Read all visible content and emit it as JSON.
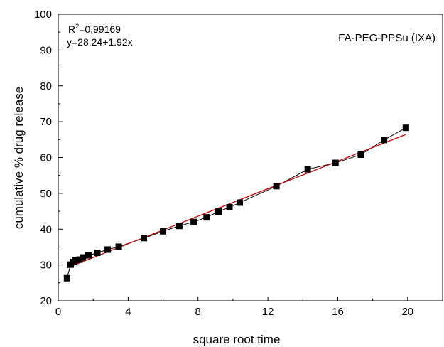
{
  "chart_data": {
    "type": "scatter",
    "title": "",
    "xlabel": "square root time",
    "ylabel": "cumulative % drug release",
    "xlim": [
      0,
      22
    ],
    "ylim": [
      20,
      100
    ],
    "xticks": [
      0,
      4,
      8,
      12,
      16,
      20
    ],
    "yticks": [
      20,
      30,
      40,
      50,
      60,
      70,
      80,
      90,
      100
    ],
    "xtick_labels": [
      "0",
      "4",
      "8",
      "12",
      "16",
      "20"
    ],
    "ytick_labels": [
      "20",
      "30",
      "40",
      "50",
      "60",
      "70",
      "80",
      "90",
      "100"
    ],
    "grid": false,
    "series": [
      {
        "marker": "square",
        "color": "#000000",
        "connected": true,
        "x": [
          0.5,
          0.71,
          0.87,
          1.0,
          1.22,
          1.41,
          1.73,
          2.24,
          2.83,
          3.46,
          4.9,
          6.0,
          6.93,
          7.75,
          8.49,
          9.17,
          9.8,
          10.39,
          12.49,
          14.28,
          15.87,
          17.32,
          18.65,
          19.9
        ],
        "y": [
          26.3,
          30.1,
          30.8,
          31.4,
          31.5,
          32.1,
          32.7,
          33.4,
          34.3,
          35.1,
          37.5,
          39.4,
          40.9,
          42.0,
          43.3,
          44.9,
          46.1,
          47.4,
          52.0,
          56.7,
          58.5,
          60.8,
          64.9,
          68.3
        ]
      },
      {
        "type": "line",
        "color": "#cc0000",
        "fit": true,
        "x": [
          0.5,
          19.9
        ],
        "y": [
          29.2,
          66.45
        ]
      }
    ],
    "annotations": {
      "r2_label": "R",
      "r2_exponent": "2",
      "r2_value": "=0,99169",
      "equation": "y=28.24+1.92x",
      "sample": "FA-PEG-PPSu (IXA)"
    }
  }
}
